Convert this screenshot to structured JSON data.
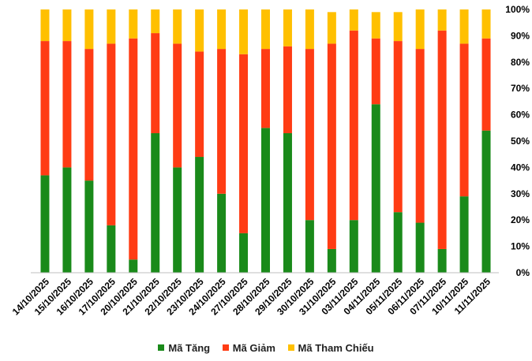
{
  "chart_data": {
    "type": "bar",
    "stacked": true,
    "categories": [
      "14/10/2025",
      "15/10/2025",
      "16/10/2025",
      "17/10/2025",
      "20/10/2025",
      "21/10/2025",
      "22/10/2025",
      "23/10/2025",
      "24/10/2025",
      "27/10/2025",
      "28/10/2025",
      "29/10/2025",
      "30/10/2025",
      "31/10/2025",
      "03/11/2025",
      "04/11/2025",
      "05/11/2025",
      "06/11/2025",
      "07/11/2025",
      "10/11/2025",
      "11/11/2025"
    ],
    "series": [
      {
        "name": "Mã Tăng",
        "color": "#1a8a1a",
        "values": [
          37,
          40,
          35,
          18,
          5,
          53,
          40,
          44,
          30,
          15,
          55,
          53,
          20,
          9,
          20,
          64,
          23,
          19,
          9,
          29,
          54
        ]
      },
      {
        "name": "Mã Giảm",
        "color": "#ff3c14",
        "values": [
          51,
          48,
          50,
          69,
          84,
          38,
          47,
          40,
          55,
          68,
          30,
          33,
          65,
          78,
          72,
          25,
          65,
          66,
          83,
          58,
          35
        ]
      },
      {
        "name": "Mã Tham Chiếu",
        "color": "#ffc000",
        "values": [
          12,
          12,
          15,
          13,
          11,
          9,
          13,
          16,
          15,
          17,
          15,
          14,
          15,
          12,
          8,
          10,
          11,
          15,
          8,
          13,
          11
        ]
      }
    ],
    "y_ticks": [
      "0%",
      "10%",
      "20%",
      "30%",
      "40%",
      "50%",
      "60%",
      "70%",
      "80%",
      "90%",
      "100%"
    ],
    "ylim": [
      0,
      100
    ],
    "y_axis_side": "right",
    "grid": false,
    "legend_position": "bottom"
  }
}
